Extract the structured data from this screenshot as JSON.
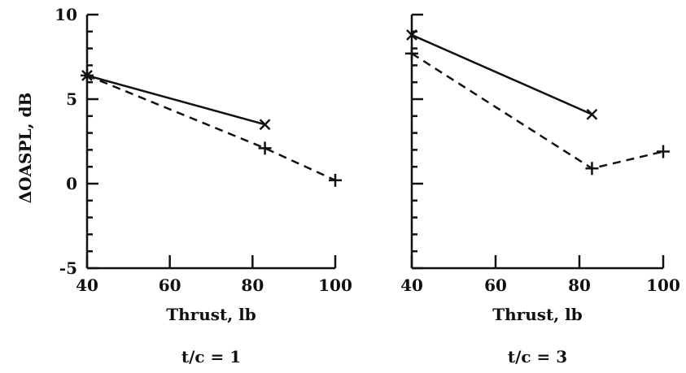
{
  "chart_data": [
    {
      "type": "line",
      "caption": "t/c = 1",
      "xlabel": "Thrust, lb",
      "ylabel": "ΔOASPL, dB",
      "xlim": [
        40,
        100
      ],
      "ylim": [
        -5,
        10
      ],
      "xticks": [
        40,
        60,
        80,
        100
      ],
      "yticks_labeled": [
        -5,
        0,
        5,
        10
      ],
      "series": [
        {
          "style": "solid",
          "marker": "x",
          "x": [
            40,
            83
          ],
          "y": [
            6.4,
            3.5
          ]
        },
        {
          "style": "dashed",
          "marker": "+",
          "x": [
            40,
            83,
            100
          ],
          "y": [
            6.4,
            2.1,
            0.2
          ]
        }
      ]
    },
    {
      "type": "line",
      "caption": "t/c = 3",
      "xlabel": "Thrust, lb",
      "ylabel": "",
      "xlim": [
        40,
        100
      ],
      "ylim": [
        -5,
        10
      ],
      "xticks": [
        40,
        60,
        80,
        100
      ],
      "yticks_labeled": [],
      "series": [
        {
          "style": "solid",
          "marker": "x",
          "x": [
            40,
            83
          ],
          "y": [
            8.8,
            4.1
          ]
        },
        {
          "style": "dashed",
          "marker": "+",
          "x": [
            40,
            83,
            100
          ],
          "y": [
            7.7,
            0.9,
            1.9
          ]
        }
      ]
    }
  ]
}
